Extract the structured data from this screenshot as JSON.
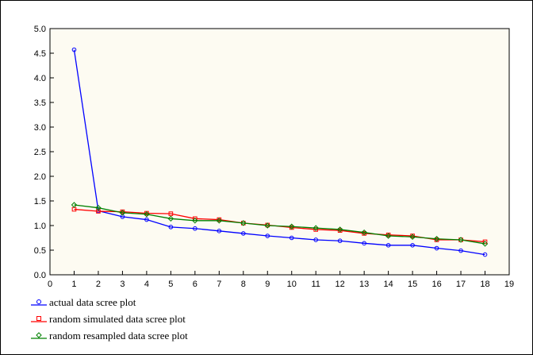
{
  "chart_data": {
    "type": "line",
    "title": "",
    "xlabel": "",
    "ylabel": "",
    "xlim": [
      0,
      19
    ],
    "ylim": [
      0,
      5
    ],
    "x_ticks": [
      "0",
      "1",
      "2",
      "3",
      "4",
      "5",
      "6",
      "7",
      "8",
      "9",
      "10",
      "11",
      "12",
      "13",
      "14",
      "15",
      "16",
      "17",
      "18",
      "19"
    ],
    "y_ticks": [
      "0.0",
      "0.5",
      "1.0",
      "1.5",
      "2.0",
      "2.5",
      "3.0",
      "3.5",
      "4.0",
      "4.5",
      "5.0"
    ],
    "grid": false,
    "legend_position": "bottom-left",
    "x": [
      1,
      2,
      3,
      4,
      5,
      6,
      7,
      8,
      9,
      10,
      11,
      12,
      13,
      14,
      15,
      16,
      17,
      18
    ],
    "series": [
      {
        "name": "actual data scree plot",
        "color": "#0000ff",
        "marker": "circle",
        "values": [
          4.57,
          1.3,
          1.18,
          1.12,
          0.97,
          0.94,
          0.89,
          0.84,
          0.79,
          0.75,
          0.71,
          0.69,
          0.64,
          0.6,
          0.6,
          0.54,
          0.49,
          0.41
        ]
      },
      {
        "name": "random simulated data scree plot",
        "color": "#ff0000",
        "marker": "square",
        "values": [
          1.33,
          1.29,
          1.28,
          1.25,
          1.24,
          1.14,
          1.12,
          1.05,
          1.01,
          0.96,
          0.92,
          0.9,
          0.84,
          0.81,
          0.79,
          0.71,
          0.71,
          0.67
        ]
      },
      {
        "name": "random resampled data scree plot",
        "color": "#008000",
        "marker": "diamond",
        "values": [
          1.42,
          1.36,
          1.26,
          1.23,
          1.14,
          1.1,
          1.1,
          1.05,
          1.0,
          0.98,
          0.95,
          0.92,
          0.86,
          0.79,
          0.77,
          0.73,
          0.71,
          0.63
        ]
      }
    ]
  }
}
